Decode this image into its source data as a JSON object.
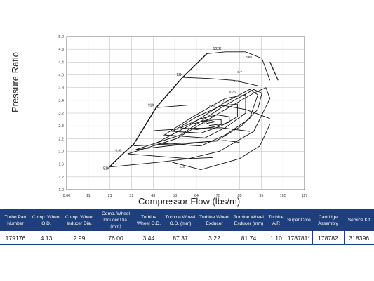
{
  "chart_data": {
    "type": "line",
    "title": "",
    "xlabel": "Compressor Flow (lbs/m)",
    "ylabel": "Pressure Ratio",
    "xlim": [
      0,
      117
    ],
    "ylim": [
      1.0,
      5.2
    ],
    "x_ticks": [
      "0.00",
      "11",
      "21",
      "32",
      "43",
      "53",
      "64",
      "75",
      "85",
      "95",
      "105",
      "117"
    ],
    "y_ticks": [
      "1.0",
      "1.2",
      "1.6",
      "2.0",
      "2.2",
      "2.8",
      "3.2",
      "3.4",
      "3.8",
      "4.0",
      "4.4",
      "4.8",
      "5.2"
    ],
    "grid": true,
    "speed_lines": [
      {
        "label": "51K",
        "points": [
          [
            21,
            1.62
          ],
          [
            45,
            1.75
          ],
          [
            60,
            1.85
          ],
          [
            72,
            1.88
          ]
        ]
      },
      {
        "label": "",
        "points": [
          [
            33,
            2.2
          ],
          [
            50,
            2.25
          ],
          [
            65,
            2.3
          ],
          [
            78,
            2.35
          ],
          [
            85,
            2.3
          ]
        ]
      },
      {
        "label": "",
        "points": [
          [
            43,
            2.62
          ],
          [
            60,
            2.68
          ],
          [
            76,
            2.7
          ],
          [
            90,
            2.6
          ]
        ]
      },
      {
        "label": "91K",
        "points": [
          [
            44,
            3.25
          ],
          [
            60,
            3.32
          ],
          [
            76,
            3.32
          ],
          [
            88,
            3.2
          ],
          [
            100,
            2.95
          ]
        ]
      },
      {
        "label": "92K",
        "points": [
          [
            57,
            4.08
          ],
          [
            70,
            4.05
          ],
          [
            82,
            4.0
          ],
          [
            94,
            3.85
          ]
        ]
      },
      {
        "label": "102K",
        "points": [
          [
            69,
            4.73
          ],
          [
            78,
            4.78
          ],
          [
            88,
            4.78
          ],
          [
            96,
            4.6
          ],
          [
            100,
            4.0
          ]
        ]
      }
    ],
    "surge_line": [
      [
        21,
        1.62
      ],
      [
        27,
        1.95
      ],
      [
        33,
        2.25
      ],
      [
        44,
        3.25
      ],
      [
        57,
        4.08
      ],
      [
        69,
        4.73
      ]
    ],
    "choke_line": [
      [
        100,
        4.5
      ],
      [
        104,
        4.0
      ]
    ],
    "efficiency_islands": [
      {
        "label": "0.6",
        "points": [
          [
            52,
            1.75
          ],
          [
            66,
            1.55
          ],
          [
            85,
            1.85
          ],
          [
            95,
            2.2
          ],
          [
            100,
            2.8
          ]
        ]
      },
      {
        "label": "0.65",
        "points": [
          [
            30,
            1.98
          ],
          [
            54,
            2.4
          ],
          [
            75,
            3.1
          ],
          [
            92,
            3.65
          ],
          [
            98,
            3.8
          ],
          [
            100,
            3.5
          ],
          [
            92,
            2.6
          ],
          [
            75,
            2.05
          ],
          [
            60,
            1.85
          ]
        ]
      },
      {
        "label": "0.7",
        "points": [
          [
            44,
            2.28
          ],
          [
            60,
            2.75
          ],
          [
            78,
            3.4
          ],
          [
            90,
            3.75
          ],
          [
            94,
            3.6
          ],
          [
            90,
            2.95
          ],
          [
            78,
            2.5
          ],
          [
            66,
            2.2
          ]
        ]
      },
      {
        "label": "0.72",
        "points": [
          [
            48,
            2.5
          ],
          [
            62,
            3.0
          ],
          [
            78,
            3.5
          ],
          [
            88,
            3.6
          ],
          [
            88,
            3.1
          ],
          [
            78,
            2.7
          ],
          [
            68,
            2.42
          ]
        ]
      },
      {
        "label": "0.73",
        "points": [
          [
            52,
            2.6
          ],
          [
            64,
            3.0
          ],
          [
            76,
            3.3
          ],
          [
            84,
            3.35
          ],
          [
            84,
            3.0
          ],
          [
            76,
            2.75
          ],
          [
            66,
            2.55
          ]
        ]
      },
      {
        "label": "0.74",
        "points": [
          [
            56,
            2.7
          ],
          [
            66,
            2.95
          ],
          [
            74,
            3.05
          ],
          [
            80,
            3.0
          ],
          [
            80,
            2.85
          ],
          [
            72,
            2.72
          ],
          [
            64,
            2.65
          ]
        ]
      },
      {
        "label": "0.75",
        "points": [
          [
            62,
            2.8
          ],
          [
            70,
            2.93
          ],
          [
            76,
            2.92
          ],
          [
            76,
            2.8
          ],
          [
            70,
            2.76
          ]
        ]
      },
      {
        "label": "0.76",
        "points": [
          [
            66,
            2.86
          ],
          [
            71,
            2.9
          ],
          [
            73,
            2.86
          ],
          [
            69,
            2.82
          ]
        ]
      },
      {
        "label": "0.68",
        "points": [
          [
            34,
            2.1
          ],
          [
            56,
            2.5
          ],
          [
            76,
            3.25
          ],
          [
            92,
            3.75
          ],
          [
            96,
            3.65
          ],
          [
            94,
            3.2
          ],
          [
            86,
            2.75
          ],
          [
            74,
            2.35
          ]
        ]
      }
    ],
    "speed_labels": [
      "51K",
      "91K",
      "92K",
      "102K"
    ],
    "efficiency_labels": [
      "0.6",
      "0.65",
      "0.68",
      "0.7",
      "0.72",
      "0.73",
      "0.74",
      "0.75",
      "0.76"
    ]
  },
  "spec_table": {
    "headers": [
      "Turbo Part Number",
      "Comp. Wheel O.D.",
      "Comp. Wheel Inducer Dia.",
      "Comp. Wheel Inducer Dia. (mm)",
      "Turbine Wheel O.D.",
      "Turbine Wheel O.D. (mm)",
      "Turbine Wheel Exducer",
      "Turbine Wheel Exducer (mm)",
      "Turbine A/R",
      "Super Core",
      "Cartridge Assembly",
      "Service Kit"
    ],
    "values": [
      "179176",
      "4.13",
      "2.99",
      "76.00",
      "3.44",
      "87.37",
      "3.22",
      "81.74",
      "1.10",
      "178781*",
      "178782",
      "318396"
    ]
  }
}
